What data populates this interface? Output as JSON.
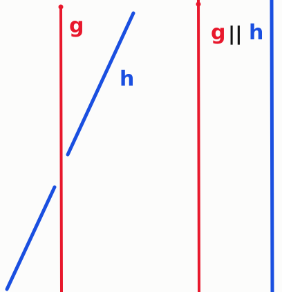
{
  "diagram": {
    "left_panel": {
      "line_g": {
        "label": "g"
      },
      "line_h": {
        "label": "h"
      }
    },
    "right_panel": {
      "label_g": "g",
      "parallel_symbol": "||",
      "label_h": "h"
    }
  },
  "colors": {
    "g_line": "#e8182c",
    "h_line": "#1a4fe0",
    "parallel_mark": "#111111",
    "paper": "#fcfcfb"
  }
}
